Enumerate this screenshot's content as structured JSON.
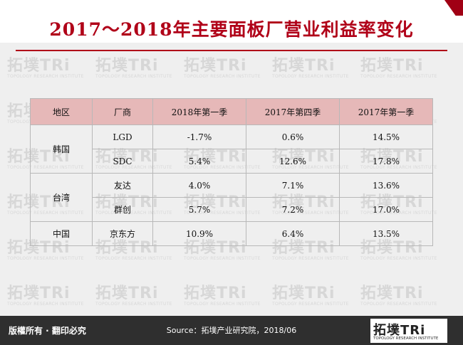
{
  "title": "2017～2018年主要面板厂营业利益率变化",
  "table": {
    "headers": [
      "地区",
      "厂商",
      "2018年第一季",
      "2017年第四季",
      "2017年第一季"
    ],
    "groups": [
      {
        "region": "韩国",
        "rows": [
          {
            "maker": "LGD",
            "q1_2018": "-1.7%",
            "q4_2017": "0.6%",
            "q1_2017": "14.5%"
          },
          {
            "maker": "SDC",
            "q1_2018": "5.4%",
            "q4_2017": "12.6%",
            "q1_2017": "17.8%"
          }
        ]
      },
      {
        "region": "台湾",
        "rows": [
          {
            "maker": "友达",
            "q1_2018": "4.0%",
            "q4_2017": "7.1%",
            "q1_2017": "13.6%"
          },
          {
            "maker": "群创",
            "q1_2018": "5.7%",
            "q4_2017": "7.2%",
            "q1_2017": "17.0%"
          }
        ]
      },
      {
        "region": "中国",
        "rows": [
          {
            "maker": "京东方",
            "q1_2018": "10.9%",
            "q4_2017": "6.4%",
            "q1_2017": "13.5%"
          }
        ]
      }
    ]
  },
  "watermark": {
    "main": "拓墣TRi",
    "sub": "TOPOLOGY RESEARCH INSTITUTE"
  },
  "footer": {
    "rights": "版權所有 · 翻印必究",
    "source": "Source：拓墣产业研究院，2018/06",
    "logo_main": "拓墣TRi",
    "logo_sub": "TOPOLOGY RESEARCH INSTITUTE"
  },
  "colors": {
    "accent": "#b00018",
    "header_fill": "#e6b8b8",
    "footer_bg": "#2f2f2f"
  }
}
